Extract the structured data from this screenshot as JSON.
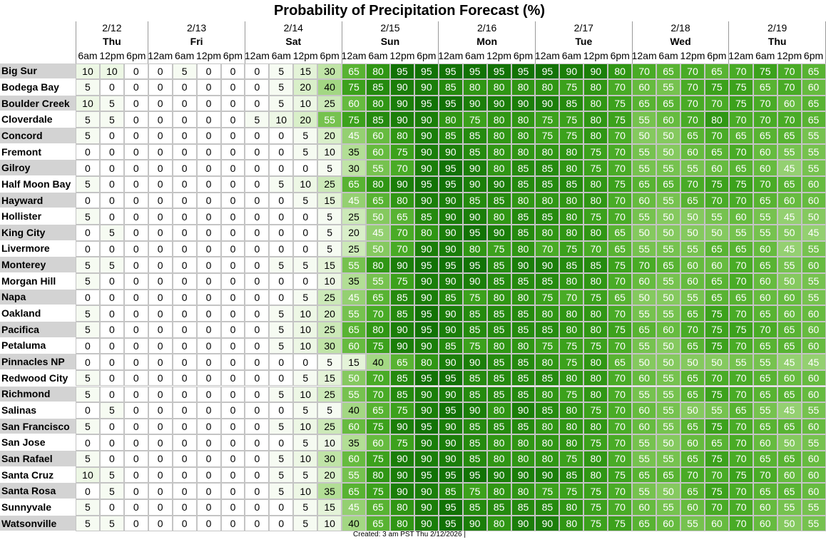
{
  "page": {
    "title": "Probability of Precipitation Forecast (%)",
    "footer": "Created: 3 am PST Thu 2/12/2026  |"
  },
  "chart_data": {
    "type": "heatmap",
    "title": "Probability of Precipitation Forecast (%)",
    "columns": [
      {
        "date": "2/12",
        "day": "Thu",
        "times": [
          "6am",
          "12pm",
          "6pm"
        ]
      },
      {
        "date": "2/13",
        "day": "Fri",
        "times": [
          "12am",
          "6am",
          "12pm",
          "6pm"
        ]
      },
      {
        "date": "2/14",
        "day": "Sat",
        "times": [
          "12am",
          "6am",
          "12pm",
          "6pm"
        ]
      },
      {
        "date": "2/15",
        "day": "Sun",
        "times": [
          "12am",
          "6am",
          "12pm",
          "6pm"
        ]
      },
      {
        "date": "2/16",
        "day": "Mon",
        "times": [
          "12am",
          "6am",
          "12pm",
          "6pm"
        ]
      },
      {
        "date": "2/17",
        "day": "Tue",
        "times": [
          "12am",
          "6am",
          "12pm",
          "6pm"
        ]
      },
      {
        "date": "2/18",
        "day": "Wed",
        "times": [
          "12am",
          "6am",
          "12pm",
          "6pm"
        ]
      },
      {
        "date": "2/19",
        "day": "Thu",
        "times": [
          "12am",
          "6am",
          "12pm",
          "6pm"
        ]
      }
    ],
    "rows": [
      {
        "name": "Big Sur",
        "values": [
          10,
          10,
          0,
          0,
          5,
          0,
          0,
          0,
          5,
          15,
          30,
          65,
          80,
          95,
          95,
          95,
          95,
          95,
          95,
          95,
          90,
          90,
          80,
          70,
          65,
          70,
          65,
          70,
          75,
          70,
          65
        ]
      },
      {
        "name": "Bodega Bay",
        "values": [
          5,
          0,
          0,
          0,
          0,
          0,
          0,
          0,
          5,
          20,
          40,
          75,
          85,
          90,
          90,
          85,
          80,
          80,
          80,
          80,
          75,
          80,
          70,
          60,
          55,
          70,
          75,
          75,
          65,
          70,
          60
        ]
      },
      {
        "name": "Boulder Creek",
        "values": [
          10,
          5,
          0,
          0,
          0,
          0,
          0,
          0,
          5,
          10,
          25,
          60,
          80,
          90,
          95,
          95,
          90,
          90,
          90,
          90,
          85,
          80,
          75,
          65,
          65,
          70,
          70,
          75,
          70,
          60,
          65
        ]
      },
      {
        "name": "Cloverdale",
        "values": [
          5,
          5,
          0,
          0,
          0,
          0,
          0,
          5,
          10,
          20,
          55,
          75,
          85,
          90,
          90,
          80,
          75,
          80,
          80,
          75,
          75,
          80,
          75,
          55,
          60,
          70,
          80,
          70,
          70,
          70,
          65
        ]
      },
      {
        "name": "Concord",
        "values": [
          5,
          0,
          0,
          0,
          0,
          0,
          0,
          0,
          0,
          5,
          20,
          45,
          60,
          80,
          90,
          85,
          85,
          80,
          80,
          75,
          75,
          80,
          70,
          50,
          50,
          65,
          70,
          65,
          65,
          65,
          55
        ]
      },
      {
        "name": "Fremont",
        "values": [
          0,
          0,
          0,
          0,
          0,
          0,
          0,
          0,
          0,
          5,
          10,
          35,
          60,
          75,
          90,
          90,
          85,
          80,
          80,
          80,
          80,
          75,
          70,
          55,
          50,
          60,
          65,
          70,
          60,
          55,
          55
        ]
      },
      {
        "name": "Gilroy",
        "values": [
          0,
          0,
          0,
          0,
          0,
          0,
          0,
          0,
          0,
          0,
          5,
          30,
          55,
          70,
          90,
          95,
          90,
          80,
          85,
          85,
          80,
          75,
          70,
          55,
          55,
          55,
          60,
          65,
          60,
          45,
          55
        ]
      },
      {
        "name": "Half Moon Bay",
        "values": [
          5,
          0,
          0,
          0,
          0,
          0,
          0,
          0,
          5,
          10,
          25,
          65,
          80,
          90,
          95,
          95,
          90,
          90,
          85,
          85,
          85,
          80,
          75,
          65,
          65,
          70,
          75,
          75,
          70,
          65,
          60
        ]
      },
      {
        "name": "Hayward",
        "values": [
          0,
          0,
          0,
          0,
          0,
          0,
          0,
          0,
          0,
          5,
          15,
          45,
          65,
          80,
          90,
          90,
          85,
          85,
          80,
          80,
          80,
          80,
          70,
          60,
          55,
          65,
          70,
          70,
          65,
          60,
          60
        ]
      },
      {
        "name": "Hollister",
        "values": [
          5,
          0,
          0,
          0,
          0,
          0,
          0,
          0,
          0,
          0,
          5,
          25,
          50,
          65,
          85,
          90,
          90,
          80,
          85,
          85,
          80,
          75,
          70,
          55,
          50,
          50,
          55,
          60,
          55,
          45,
          50
        ]
      },
      {
        "name": "King City",
        "values": [
          0,
          5,
          0,
          0,
          0,
          0,
          0,
          0,
          0,
          0,
          5,
          20,
          45,
          70,
          80,
          90,
          95,
          90,
          85,
          80,
          80,
          80,
          65,
          50,
          50,
          50,
          50,
          55,
          55,
          50,
          45
        ]
      },
      {
        "name": "Livermore",
        "values": [
          0,
          0,
          0,
          0,
          0,
          0,
          0,
          0,
          0,
          0,
          5,
          25,
          50,
          70,
          90,
          90,
          80,
          75,
          80,
          70,
          75,
          70,
          65,
          55,
          55,
          55,
          65,
          65,
          60,
          45,
          55
        ]
      },
      {
        "name": "Monterey",
        "values": [
          5,
          5,
          0,
          0,
          0,
          0,
          0,
          0,
          5,
          5,
          15,
          55,
          80,
          90,
          95,
          95,
          95,
          85,
          90,
          90,
          85,
          85,
          75,
          70,
          65,
          60,
          60,
          70,
          65,
          55,
          60
        ]
      },
      {
        "name": "Morgan Hill",
        "values": [
          5,
          0,
          0,
          0,
          0,
          0,
          0,
          0,
          0,
          0,
          10,
          35,
          55,
          75,
          90,
          90,
          90,
          85,
          85,
          85,
          80,
          80,
          70,
          60,
          55,
          60,
          65,
          70,
          60,
          50,
          55
        ]
      },
      {
        "name": "Napa",
        "values": [
          0,
          0,
          0,
          0,
          0,
          0,
          0,
          0,
          0,
          5,
          25,
          45,
          65,
          85,
          90,
          85,
          75,
          80,
          80,
          75,
          70,
          75,
          65,
          50,
          50,
          55,
          65,
          65,
          60,
          60,
          55
        ]
      },
      {
        "name": "Oakland",
        "values": [
          5,
          0,
          0,
          0,
          0,
          0,
          0,
          0,
          5,
          10,
          20,
          55,
          70,
          85,
          95,
          90,
          85,
          85,
          85,
          80,
          80,
          80,
          70,
          55,
          55,
          65,
          75,
          70,
          65,
          60,
          60
        ]
      },
      {
        "name": "Pacifica",
        "values": [
          5,
          0,
          0,
          0,
          0,
          0,
          0,
          0,
          5,
          10,
          25,
          65,
          80,
          90,
          95,
          90,
          85,
          85,
          85,
          85,
          80,
          80,
          75,
          65,
          60,
          70,
          75,
          75,
          70,
          65,
          60
        ]
      },
      {
        "name": "Petaluma",
        "values": [
          0,
          0,
          0,
          0,
          0,
          0,
          0,
          0,
          5,
          10,
          30,
          60,
          75,
          90,
          90,
          85,
          75,
          80,
          80,
          75,
          75,
          75,
          70,
          55,
          50,
          65,
          75,
          70,
          65,
          65,
          60
        ]
      },
      {
        "name": "Pinnacles NP",
        "values": [
          0,
          0,
          0,
          0,
          0,
          0,
          0,
          0,
          0,
          0,
          5,
          15,
          40,
          65,
          80,
          90,
          90,
          85,
          85,
          80,
          75,
          80,
          65,
          50,
          50,
          50,
          50,
          55,
          55,
          45,
          45
        ]
      },
      {
        "name": "Redwood City",
        "values": [
          5,
          0,
          0,
          0,
          0,
          0,
          0,
          0,
          0,
          5,
          15,
          50,
          70,
          85,
          95,
          95,
          85,
          85,
          85,
          85,
          80,
          80,
          70,
          60,
          55,
          65,
          70,
          70,
          65,
          60,
          60
        ]
      },
      {
        "name": "Richmond",
        "values": [
          5,
          0,
          0,
          0,
          0,
          0,
          0,
          0,
          5,
          10,
          25,
          55,
          70,
          85,
          90,
          90,
          85,
          85,
          85,
          80,
          75,
          80,
          70,
          55,
          55,
          65,
          75,
          70,
          65,
          65,
          60
        ]
      },
      {
        "name": "Salinas",
        "values": [
          0,
          5,
          0,
          0,
          0,
          0,
          0,
          0,
          0,
          5,
          5,
          40,
          65,
          75,
          90,
          95,
          90,
          80,
          90,
          85,
          80,
          75,
          70,
          60,
          55,
          50,
          55,
          65,
          55,
          45,
          55
        ]
      },
      {
        "name": "San Francisco",
        "values": [
          5,
          0,
          0,
          0,
          0,
          0,
          0,
          0,
          5,
          10,
          25,
          60,
          75,
          90,
          95,
          90,
          85,
          85,
          85,
          80,
          80,
          80,
          70,
          60,
          55,
          65,
          75,
          70,
          65,
          65,
          60
        ]
      },
      {
        "name": "San Jose",
        "values": [
          0,
          0,
          0,
          0,
          0,
          0,
          0,
          0,
          0,
          5,
          10,
          35,
          60,
          75,
          90,
          90,
          85,
          80,
          80,
          80,
          80,
          75,
          70,
          55,
          50,
          60,
          65,
          70,
          60,
          50,
          55
        ]
      },
      {
        "name": "San Rafael",
        "values": [
          5,
          0,
          0,
          0,
          0,
          0,
          0,
          0,
          5,
          10,
          30,
          60,
          75,
          90,
          90,
          90,
          85,
          80,
          80,
          80,
          75,
          80,
          70,
          55,
          55,
          65,
          75,
          70,
          65,
          65,
          60
        ]
      },
      {
        "name": "Santa Cruz",
        "values": [
          10,
          5,
          0,
          0,
          0,
          0,
          0,
          0,
          5,
          5,
          20,
          55,
          80,
          90,
          95,
          95,
          95,
          90,
          90,
          90,
          85,
          80,
          75,
          65,
          65,
          70,
          70,
          75,
          70,
          60,
          60
        ]
      },
      {
        "name": "Santa Rosa",
        "values": [
          0,
          5,
          0,
          0,
          0,
          0,
          0,
          0,
          5,
          10,
          35,
          65,
          75,
          90,
          90,
          85,
          75,
          80,
          80,
          75,
          75,
          75,
          70,
          55,
          50,
          65,
          75,
          70,
          65,
          65,
          60
        ]
      },
      {
        "name": "Sunnyvale",
        "values": [
          5,
          0,
          0,
          0,
          0,
          0,
          0,
          0,
          0,
          5,
          15,
          45,
          65,
          80,
          90,
          95,
          85,
          85,
          85,
          85,
          80,
          75,
          70,
          60,
          55,
          60,
          70,
          70,
          60,
          55,
          55
        ]
      },
      {
        "name": "Watsonville",
        "values": [
          5,
          5,
          0,
          0,
          0,
          0,
          0,
          0,
          0,
          5,
          10,
          40,
          65,
          80,
          90,
          95,
          90,
          80,
          90,
          90,
          80,
          75,
          75,
          65,
          60,
          55,
          60,
          70,
          60,
          50,
          55
        ]
      }
    ],
    "legend": "none"
  }
}
